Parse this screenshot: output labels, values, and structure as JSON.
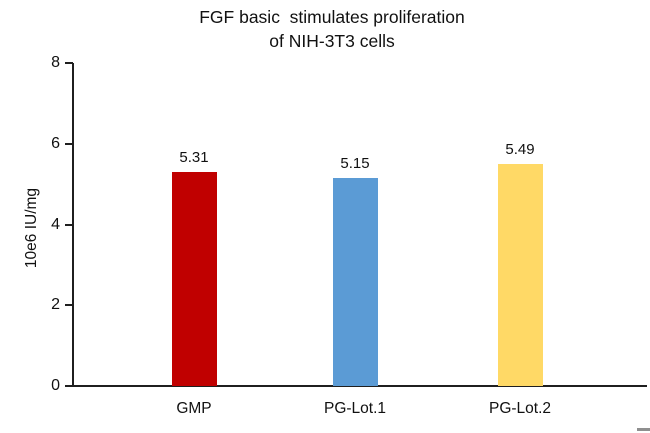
{
  "chart_data": {
    "type": "bar",
    "title": "FGF basic  stimulates proliferation of NIH-3T3 cells",
    "title_lines": [
      "FGF basic  stimulates proliferation",
      "of NIH-3T3 cells"
    ],
    "categories": [
      "GMP",
      "PG-Lot.1",
      "PG-Lot.2"
    ],
    "values": [
      5.31,
      5.15,
      5.49
    ],
    "value_labels": [
      "5.31",
      "5.15",
      "5.49"
    ],
    "bar_colors": [
      "#c00000",
      "#5b9bd5",
      "#ffd966"
    ],
    "xlabel": "",
    "ylabel": "10e6 IU/mg",
    "yticks": [
      0,
      2,
      4,
      6,
      8
    ],
    "ylim": [
      0,
      8
    ],
    "grid": false,
    "legend": "none",
    "axis_color": "#1f1f1f",
    "background": "#ffffff"
  }
}
